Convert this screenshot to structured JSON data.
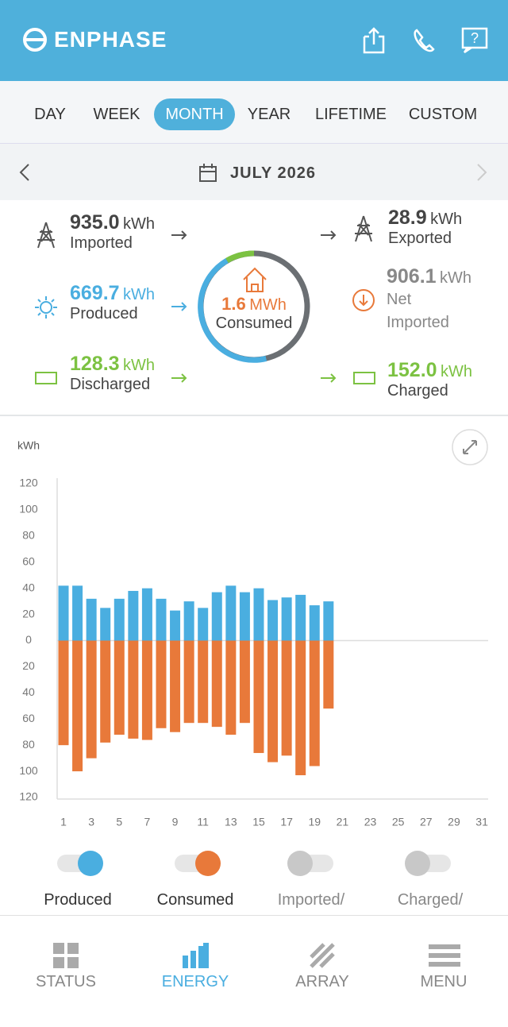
{
  "header": {
    "brand": "ENPHASE"
  },
  "tabs": [
    "DAY",
    "WEEK",
    "MONTH",
    "YEAR",
    "LIFETIME",
    "CUSTOM"
  ],
  "date": "JULY 2026",
  "summary": {
    "imported": {
      "value": "935.0",
      "unit": "kWh",
      "label": "Imported"
    },
    "exported": {
      "value": "28.9",
      "unit": "kWh",
      "label": "Exported"
    },
    "produced": {
      "value": "669.7",
      "unit": "kWh",
      "label": "Produced"
    },
    "net": {
      "value": "906.1",
      "unit": "kWh",
      "label": "Net Imported"
    },
    "discharged": {
      "value": "128.3",
      "unit": "kWh",
      "label": "Discharged"
    },
    "charged": {
      "value": "152.0",
      "unit": "kWh",
      "label": "Charged"
    },
    "consumed": {
      "value": "1.6",
      "unit": "MWh",
      "label": "Consumed"
    }
  },
  "chart_data": {
    "type": "bar",
    "y_label": "kWh",
    "categories": [
      1,
      null,
      3,
      null,
      5,
      null,
      7,
      null,
      9,
      null,
      11,
      null,
      13,
      null,
      15,
      null,
      17,
      null,
      19,
      null,
      21,
      null,
      23,
      null,
      25,
      null,
      27,
      null,
      29,
      null,
      31
    ],
    "series": [
      {
        "name": "Produced",
        "color": "#4aaee0",
        "values": [
          42,
          42,
          32,
          25,
          32,
          38,
          40,
          32,
          23,
          30,
          25,
          37,
          42,
          37,
          40,
          31,
          33,
          35,
          27,
          30,
          null,
          null,
          null,
          null,
          null,
          null,
          null,
          null,
          null,
          null,
          null
        ]
      },
      {
        "name": "Consumed",
        "color": "#e8793a",
        "values": [
          -80,
          -100,
          -90,
          -78,
          -72,
          -75,
          -76,
          -67,
          -70,
          -63,
          -63,
          -66,
          -72,
          -63,
          -86,
          -93,
          -88,
          -103,
          -96,
          -52,
          null,
          null,
          null,
          null,
          null,
          null,
          null,
          null,
          null,
          null,
          null
        ]
      }
    ],
    "ylim": [
      -120,
      120
    ],
    "yticks": [
      {
        "value": -120,
        "label": "120"
      },
      {
        "value": -100,
        "label": "100"
      },
      {
        "value": -80,
        "label": "80"
      },
      {
        "value": -60,
        "label": "60"
      },
      {
        "value": -40,
        "label": "40"
      },
      {
        "value": -20,
        "label": "20"
      },
      0,
      20,
      40,
      60,
      80,
      100,
      120
    ]
  },
  "toggles": {
    "others": [
      "Imported/",
      "Charged/"
    ]
  },
  "nav": [
    "STATUS",
    "ENERGY",
    "ARRAY",
    "MENU"
  ]
}
